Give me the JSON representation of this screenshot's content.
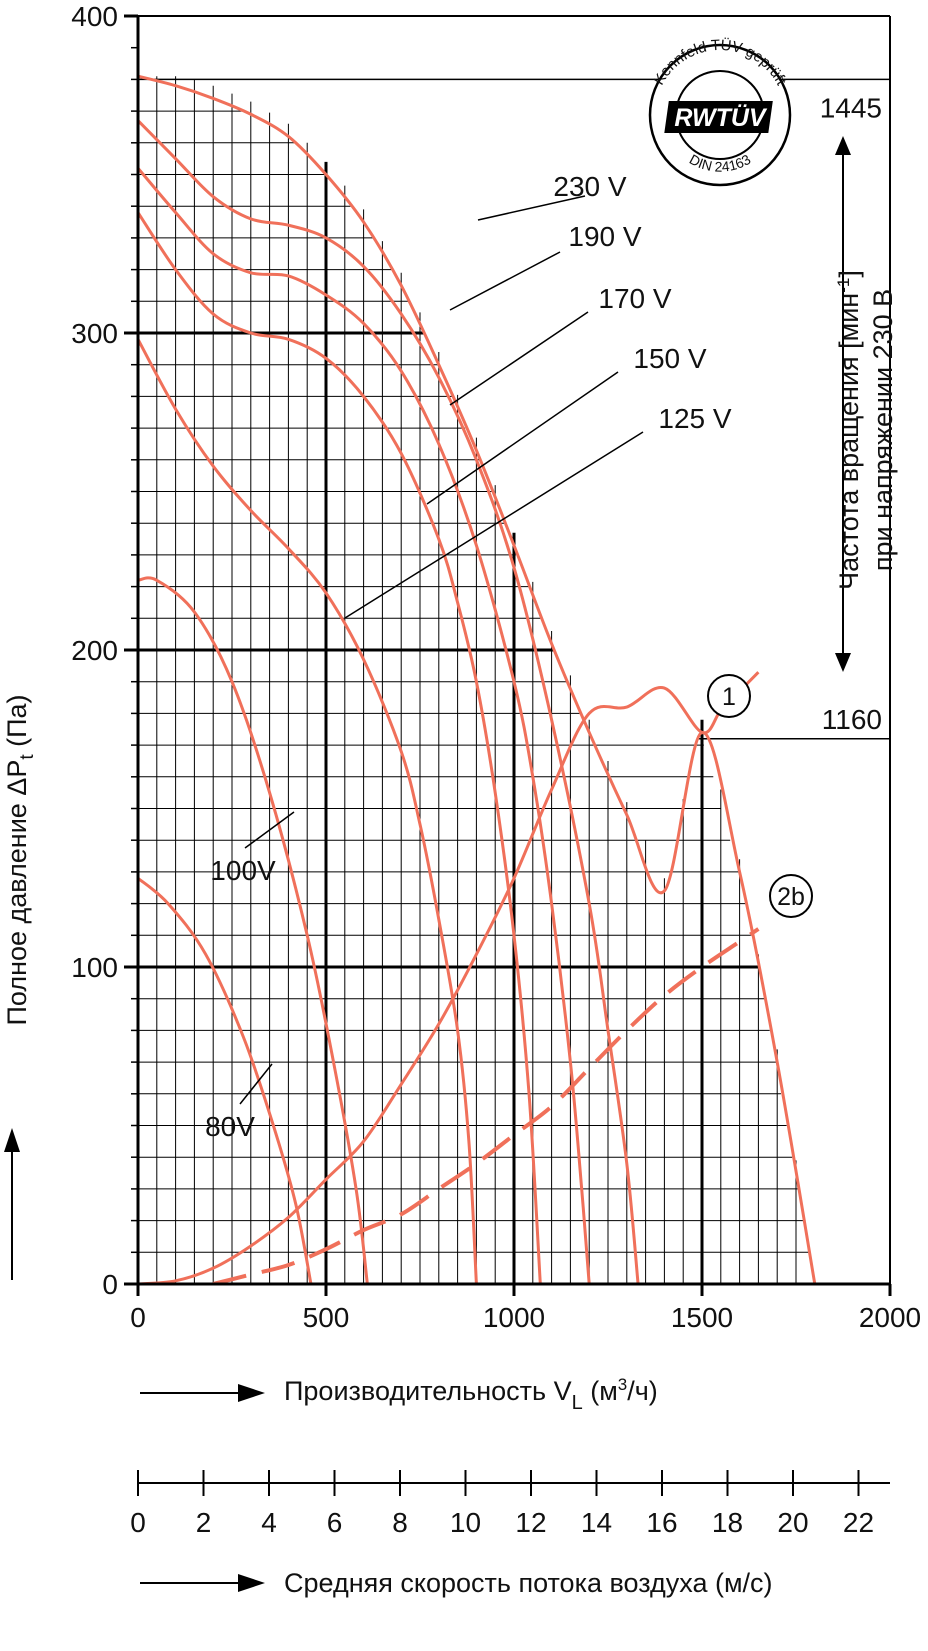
{
  "chart_data": {
    "type": "line",
    "xlabel": "Производительность V",
    "xlabel_sub": "L",
    "xlabel_unit_pre": " (м",
    "xlabel_unit_sup": "3",
    "xlabel_unit_post": "/ч)",
    "ylabel": "Полное давление ΔP",
    "ylabel_sub": "t",
    "ylabel_unit": " (Па)",
    "xlim": [
      0,
      2000
    ],
    "ylim": [
      0,
      400
    ],
    "x_ticks": [
      "0",
      "500",
      "1000",
      "1500",
      "2000"
    ],
    "y_ticks": [
      "0",
      "100",
      "200",
      "300",
      "400"
    ],
    "grid": true,
    "fan_curves": [
      {
        "name": "230 V",
        "points": [
          [
            0,
            381
          ],
          [
            100,
            378
          ],
          [
            200,
            374
          ],
          [
            300,
            369
          ],
          [
            400,
            362
          ],
          [
            500,
            350
          ],
          [
            600,
            335
          ],
          [
            700,
            315
          ],
          [
            800,
            290
          ],
          [
            900,
            263
          ],
          [
            1000,
            233
          ],
          [
            1100,
            202
          ],
          [
            1200,
            174
          ],
          [
            1300,
            148
          ],
          [
            1400,
            124
          ],
          [
            1500,
            174
          ],
          [
            1600,
            130
          ],
          [
            1700,
            70
          ],
          [
            1800,
            0
          ]
        ]
      },
      {
        "name": "190 V",
        "points": [
          [
            0,
            367
          ],
          [
            100,
            355
          ],
          [
            200,
            343
          ],
          [
            300,
            336
          ],
          [
            400,
            334
          ],
          [
            500,
            330
          ],
          [
            600,
            321
          ],
          [
            700,
            306
          ],
          [
            800,
            286
          ],
          [
            900,
            260
          ],
          [
            1000,
            226
          ],
          [
            1100,
            178
          ],
          [
            1200,
            120
          ],
          [
            1250,
            80
          ],
          [
            1300,
            38
          ],
          [
            1330,
            0
          ]
        ]
      },
      {
        "name": "170 V",
        "points": [
          [
            0,
            352
          ],
          [
            100,
            338
          ],
          [
            200,
            325
          ],
          [
            300,
            319
          ],
          [
            400,
            318
          ],
          [
            500,
            312
          ],
          [
            600,
            303
          ],
          [
            700,
            288
          ],
          [
            800,
            265
          ],
          [
            900,
            233
          ],
          [
            1000,
            190
          ],
          [
            1050,
            160
          ],
          [
            1100,
            120
          ],
          [
            1150,
            70
          ],
          [
            1180,
            30
          ],
          [
            1200,
            0
          ]
        ]
      },
      {
        "name": "150 V",
        "points": [
          [
            0,
            338
          ],
          [
            100,
            320
          ],
          [
            200,
            306
          ],
          [
            300,
            300
          ],
          [
            400,
            298
          ],
          [
            500,
            292
          ],
          [
            600,
            280
          ],
          [
            700,
            262
          ],
          [
            800,
            235
          ],
          [
            850,
            215
          ],
          [
            900,
            190
          ],
          [
            950,
            155
          ],
          [
            1000,
            110
          ],
          [
            1040,
            60
          ],
          [
            1070,
            0
          ]
        ]
      },
      {
        "name": "125 V",
        "points": [
          [
            0,
            298
          ],
          [
            100,
            276
          ],
          [
            200,
            258
          ],
          [
            300,
            244
          ],
          [
            400,
            232
          ],
          [
            500,
            218
          ],
          [
            600,
            197
          ],
          [
            700,
            168
          ],
          [
            750,
            145
          ],
          [
            800,
            115
          ],
          [
            850,
            80
          ],
          [
            880,
            45
          ],
          [
            900,
            0
          ]
        ]
      },
      {
        "name": "100V",
        "points": [
          [
            0,
            222
          ],
          [
            50,
            222
          ],
          [
            150,
            212
          ],
          [
            250,
            190
          ],
          [
            350,
            155
          ],
          [
            450,
            110
          ],
          [
            520,
            70
          ],
          [
            580,
            30
          ],
          [
            610,
            0
          ]
        ]
      },
      {
        "name": "80V",
        "points": [
          [
            0,
            128
          ],
          [
            80,
            120
          ],
          [
            180,
            104
          ],
          [
            280,
            78
          ],
          [
            360,
            50
          ],
          [
            420,
            25
          ],
          [
            460,
            0
          ]
        ]
      }
    ],
    "curve_labels": [
      "230 V",
      "190 V",
      "170 V",
      "150 V",
      "125 V",
      "100V",
      "80V"
    ],
    "system_curves": [
      {
        "name": "1",
        "style": "solid",
        "points": [
          [
            0,
            0
          ],
          [
            100,
            1
          ],
          [
            200,
            5
          ],
          [
            300,
            12
          ],
          [
            400,
            21
          ],
          [
            500,
            33
          ],
          [
            600,
            45
          ],
          [
            700,
            63
          ],
          [
            800,
            82
          ],
          [
            900,
            104
          ],
          [
            1000,
            128
          ],
          [
            1100,
            156
          ],
          [
            1200,
            180
          ],
          [
            1300,
            182
          ],
          [
            1400,
            188
          ],
          [
            1500,
            174
          ],
          [
            1550,
            181
          ],
          [
            1600,
            187
          ],
          [
            1650,
            193
          ]
        ]
      },
      {
        "name": "2b",
        "style": "dashed",
        "points": [
          [
            200,
            0
          ],
          [
            300,
            3
          ],
          [
            400,
            6
          ],
          [
            500,
            11
          ],
          [
            600,
            17
          ],
          [
            700,
            22
          ],
          [
            800,
            30
          ],
          [
            900,
            38
          ],
          [
            1000,
            47
          ],
          [
            1100,
            56
          ],
          [
            1200,
            68
          ],
          [
            1300,
            80
          ],
          [
            1400,
            91
          ],
          [
            1500,
            100
          ],
          [
            1600,
            108
          ],
          [
            1650,
            112
          ]
        ]
      }
    ],
    "reference_lines": [
      {
        "label": "1445",
        "y": 380
      },
      {
        "label": "1160",
        "y": 172
      }
    ],
    "right_axis_label_line1": "Частота вращения [мин",
    "right_axis_label_sup": "-1",
    "right_axis_label_line1_end": "]",
    "right_axis_label_line2": "при напряжении 230 В",
    "velocity_axis": {
      "label": "Средняя скорость потока воздуха (м/с)",
      "ticks": [
        "0",
        "2",
        "4",
        "6",
        "8",
        "10",
        "12",
        "14",
        "16",
        "18",
        "20",
        "22"
      ]
    },
    "stamp": {
      "top_text": "Kennfeld TÜV geprüft",
      "brand": "RWTÜV",
      "bottom_text": "DIN 24163"
    },
    "colors": {
      "curve": "#f0705a",
      "grid": "#000000",
      "text": "#111111"
    }
  }
}
